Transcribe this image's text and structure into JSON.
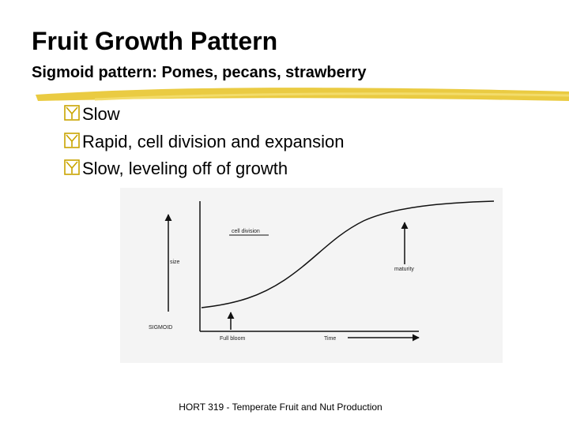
{
  "header": {
    "title": "Fruit Growth Pattern",
    "subtitle": "Sigmoid pattern: Pomes, pecans, strawberry"
  },
  "bullets": [
    "Slow",
    "Rapid, cell division and expansion",
    "Slow, leveling off of growth"
  ],
  "figure": {
    "cell_division": "cell division",
    "size": "size",
    "maturity": "maturity",
    "sigmoid": "SIGMOID",
    "full_bloom": "Full bloom",
    "time": "Time"
  },
  "footer": "HORT 319 - Temperate Fruit and Nut Production"
}
